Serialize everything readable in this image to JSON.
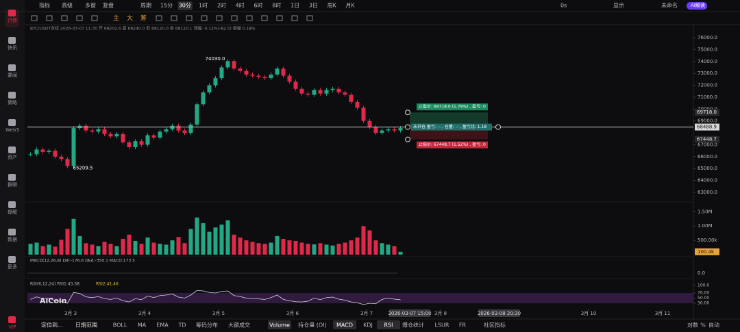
{
  "sidebar": [
    "行情",
    "快讯",
    "要闻",
    "策略",
    "Web3",
    "资产",
    "群聊",
    "提醒",
    "数据",
    "更多",
    "VIP"
  ],
  "toolbar": {
    "left": [
      "指标",
      "高级",
      "多窗",
      "复盘",
      "周期"
    ],
    "periods": [
      "15分",
      "30分",
      "1时",
      "2时",
      "4时",
      "6时",
      "8时",
      "1日",
      "3日",
      "周K",
      "月K"
    ],
    "active_period": 1,
    "right": [
      "0s",
      "显示",
      "未命名",
      "AI解读"
    ]
  },
  "drawing_tools": [
    "主",
    "大",
    "筹"
  ],
  "info": "BTC/USDT永续 2026-03-07 11:30 开 68202.6 高 68240.0 低 68120.0 收 68120.1 涨幅 -0.12%(-82.5) 振幅 0.18%",
  "chart_data": {
    "type": "candlestick",
    "values": [
      66200,
      66600,
      66400,
      66500,
      66000,
      65800,
      65209.5,
      68400,
      68600,
      68200,
      68100,
      68300,
      67900,
      67700,
      67900,
      67200,
      66800,
      67300,
      67000,
      67800,
      67600,
      68100,
      68300,
      68600,
      68200,
      68000,
      68700,
      70400,
      71400,
      72000,
      72600,
      73500,
      74030,
      73400,
      73200,
      72900,
      72800,
      72700,
      72600,
      72900,
      73400,
      72800,
      72300,
      71700,
      71300,
      71200,
      71600,
      71300,
      71600,
      71700,
      71400,
      71200,
      70600,
      70100,
      69000,
      68500,
      68000,
      68200,
      68300,
      68200,
      68400
    ],
    "up_color": "#22a884",
    "down_color": "#e0294a",
    "ylim": [
      63000,
      76000
    ],
    "yticks": [
      {
        "value": 63000,
        "label": "63000.0"
      },
      {
        "value": 64000,
        "label": "64000.0"
      },
      {
        "value": 65000,
        "label": "65000.0"
      },
      {
        "value": 66000,
        "label": "66000.0"
      },
      {
        "value": 67000,
        "label": "67000.0"
      },
      {
        "value": 69000,
        "label": "69000.0"
      },
      {
        "value": 70000,
        "label": "70000.0"
      },
      {
        "value": 71000,
        "label": "71000.0"
      },
      {
        "value": 72000,
        "label": "72000.0"
      },
      {
        "value": 73000,
        "label": "73000.0"
      },
      {
        "value": 74000,
        "label": "74000.0"
      },
      {
        "value": 75000,
        "label": "75000.0"
      },
      {
        "value": 76000,
        "label": "76000.0"
      }
    ],
    "xlim": [
      0,
      108
    ],
    "xticks": [
      {
        "value": 7,
        "label": "3月 3"
      },
      {
        "value": 19,
        "label": "3月 4"
      },
      {
        "value": 31,
        "label": "3月 5"
      },
      {
        "value": 43,
        "label": "3月 6"
      },
      {
        "value": 55,
        "label": "3月 7"
      },
      {
        "value": 67,
        "label": "3月 8"
      },
      {
        "value": 91,
        "label": "3月 10"
      },
      {
        "value": 103,
        "label": "3月 11"
      }
    ],
    "time_markers": [
      {
        "value": 62,
        "label": "2026-03-07 15:00"
      },
      {
        "value": 76.5,
        "label": "2026-03-08 20:30"
      }
    ],
    "high_label": {
      "value": 74030,
      "label": "74030.0"
    },
    "low_label": 65209.5,
    "current_price": 68488.9,
    "volume": {
      "values": [
        380000,
        420000,
        300000,
        350000,
        280000,
        520000,
        900000,
        1250000,
        650000,
        400000,
        350000,
        300000,
        450000,
        380000,
        300000,
        550000,
        700000,
        480000,
        380000,
        600000,
        420000,
        380000,
        350000,
        500000,
        620000,
        400000,
        900000,
        1300000,
        1100000,
        800000,
        950000,
        1050000,
        1200000,
        700000,
        600000,
        500000,
        450000,
        400000,
        380000,
        420000,
        650000,
        550000,
        500000,
        480000,
        420000,
        380000,
        360000,
        400000,
        350000,
        320000,
        380000,
        420000,
        500000,
        600000,
        1000000,
        850000,
        500000,
        400000,
        350000,
        300000,
        100400
      ],
      "ylim": [
        0,
        1700000
      ],
      "yticks": [
        {
          "value": 500000,
          "label": "500.00k"
        },
        {
          "value": 1000000,
          "label": "1.00M"
        },
        {
          "value": 1500000,
          "label": "1.50M"
        }
      ],
      "current": {
        "value": 100400,
        "label": "100.4k"
      }
    },
    "macd": {
      "label": "MACD(12,26,9)  DIF:-176.6  DEA:-350.1  MACD:173.5",
      "yticks": [
        {
          "value": 0,
          "label": "0.0"
        }
      ]
    },
    "rsi": {
      "label": "RSI(6,12,24)  RSI1:43.58",
      "label2": "RSI2:41.46",
      "values": [
        45,
        55,
        48,
        50,
        40,
        38,
        30,
        72,
        68,
        55,
        52,
        56,
        48,
        45,
        50,
        40,
        35,
        48,
        44,
        58,
        52,
        60,
        62,
        66,
        54,
        50,
        62,
        80,
        78,
        72,
        70,
        76,
        78,
        60,
        56,
        50,
        48,
        47,
        45,
        52,
        62,
        45,
        40,
        36,
        35,
        38,
        50,
        44,
        52,
        54,
        46,
        42,
        35,
        32,
        25,
        30,
        28,
        45,
        50,
        46,
        43.58
      ],
      "ylim": [
        20,
        100
      ],
      "yticks": [
        {
          "value": 30,
          "label": "30.00"
        },
        {
          "value": 50,
          "label": "50.00"
        },
        {
          "value": 70,
          "label": "70.00"
        },
        {
          "value": 100,
          "label": "100.0"
        }
      ],
      "color": "#d8d8e0"
    }
  },
  "orders": {
    "take_profit": {
      "text": "止盈价: 69718.0 (1.79%) , 盈亏: 0",
      "price": {
        "value": 69718,
        "label": "69718.0"
      }
    },
    "position": "未开仓 盈亏: -- , 仓量: -- , 盈亏比: 1.18",
    "stop_loss": {
      "text": "止损价: 67448.7 (1.52%) , 盈亏: 0",
      "price": 67448.7
    }
  },
  "watermark": "AiCoin",
  "bottom_bar": {
    "left": [
      "定位到...",
      "日期范围"
    ],
    "indicators": [
      "BOLL",
      "MA",
      "EMA",
      "TD",
      "筹码分布",
      "大额成交",
      "Volume",
      "持仓量 (OI)",
      "MACD",
      "KDJ",
      "RSI",
      "爆仓统计",
      "LSUR",
      "FR",
      "社区指标"
    ],
    "active": [
      6,
      8,
      10
    ],
    "right": [
      "对数",
      "%",
      "自动"
    ]
  }
}
